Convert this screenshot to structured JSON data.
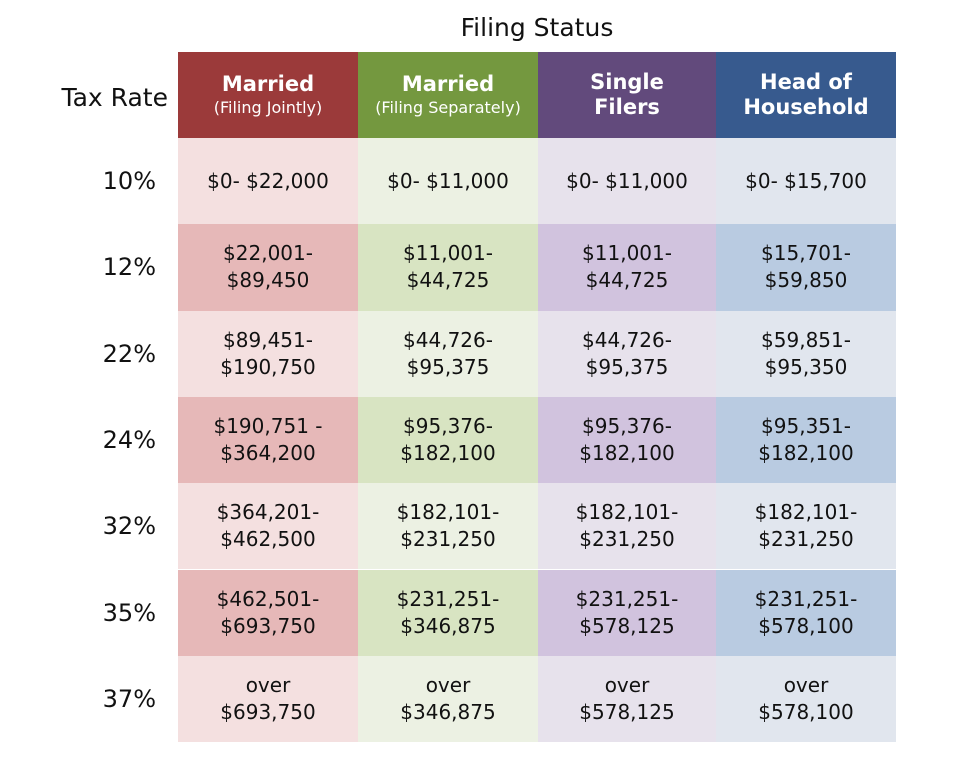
{
  "chart_data": {
    "type": "table",
    "title": "Filing Status",
    "row_heading": "Tax Rate",
    "columns": [
      {
        "line1": "Married",
        "line2": "",
        "sub": "(Filing Jointly)",
        "header_color": "#9b3a3a",
        "light": "#f4e0e0",
        "dark": "#e6b8b8"
      },
      {
        "line1": "Married",
        "line2": "",
        "sub": "(Filing Separately)",
        "header_color": "#74983f",
        "light": "#ecf1e3",
        "dark": "#d8e4c2"
      },
      {
        "line1": "Single",
        "line2": "Filers",
        "sub": "",
        "header_color": "#624a7c",
        "light": "#e7e2ec",
        "dark": "#d1c3de"
      },
      {
        "line1": "Head of",
        "line2": "Household",
        "sub": "",
        "header_color": "#375a8e",
        "light": "#e1e6ee",
        "dark": "#b9cbe1"
      }
    ],
    "rows": [
      {
        "rate": "10%",
        "cells": [
          [
            "$0- $22,000"
          ],
          [
            "$0- $11,000"
          ],
          [
            "$0- $11,000"
          ],
          [
            "$0- $15,700"
          ]
        ]
      },
      {
        "rate": "12%",
        "cells": [
          [
            "$22,001-",
            "$89,450"
          ],
          [
            "$11,001-",
            "$44,725"
          ],
          [
            "$11,001-",
            "$44,725"
          ],
          [
            "$15,701-",
            "$59,850"
          ]
        ]
      },
      {
        "rate": "22%",
        "cells": [
          [
            "$89,451-",
            "$190,750"
          ],
          [
            "$44,726-",
            "$95,375"
          ],
          [
            "$44,726-",
            "$95,375"
          ],
          [
            "$59,851-",
            "$95,350"
          ]
        ]
      },
      {
        "rate": "24%",
        "cells": [
          [
            "$190,751 -",
            "$364,200"
          ],
          [
            "$95,376-",
            "$182,100"
          ],
          [
            "$95,376-",
            "$182,100"
          ],
          [
            "$95,351-",
            "$182,100"
          ]
        ]
      },
      {
        "rate": "32%",
        "cells": [
          [
            "$364,201-",
            "$462,500"
          ],
          [
            "$182,101-",
            "$231,250"
          ],
          [
            "$182,101-",
            "$231,250"
          ],
          [
            "$182,101-",
            "$231,250"
          ]
        ]
      },
      {
        "rate": "35%",
        "cells": [
          [
            "$462,501-",
            "$693,750"
          ],
          [
            "$231,251-",
            "$346,875"
          ],
          [
            "$231,251-",
            "$578,125"
          ],
          [
            "$231,251-",
            "$578,100"
          ]
        ]
      },
      {
        "rate": "37%",
        "cells": [
          [
            "over",
            "$693,750"
          ],
          [
            "over",
            "$346,875"
          ],
          [
            "over",
            "$578,125"
          ],
          [
            "over",
            "$578,100"
          ]
        ]
      }
    ]
  }
}
